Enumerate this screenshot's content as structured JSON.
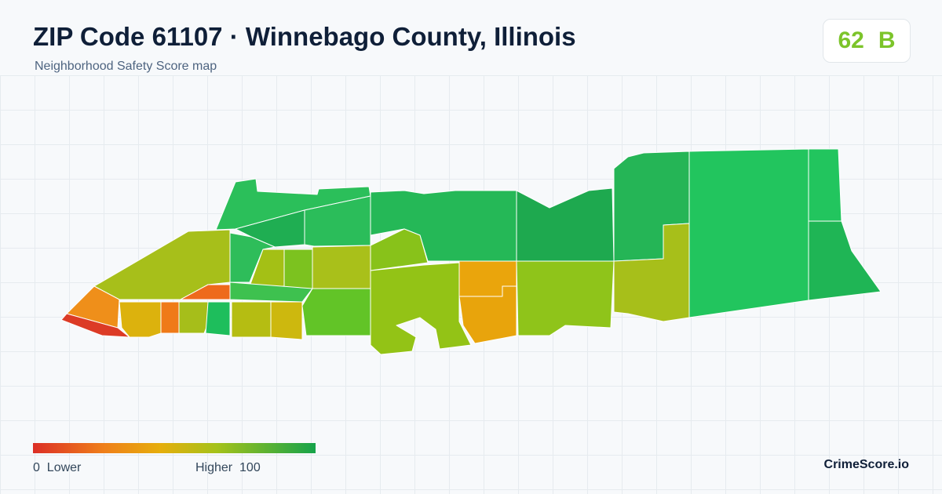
{
  "header": {
    "title": "ZIP Code 61107 · Winnebago County, Illinois",
    "subtitle": "Neighborhood Safety Score map"
  },
  "badge": {
    "score": 62,
    "grade": "B"
  },
  "legend": {
    "min": 0,
    "min_label": "Lower",
    "max_label": "Higher",
    "max": 100
  },
  "footer": {
    "brand": "CrimeScore.io"
  }
}
